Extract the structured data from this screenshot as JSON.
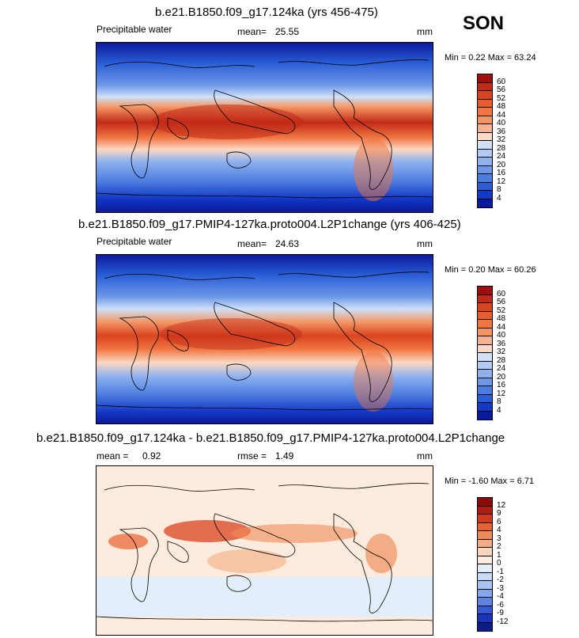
{
  "season": "SON",
  "units": "mm",
  "panels": [
    {
      "title": "b.e21.B1850.f09_g17.124ka (yrs 456-475)",
      "variable": "Precipitable water",
      "mean_label": "mean=",
      "mean": "25.55",
      "minmax": "Min =   0.22 Max =  63.24"
    },
    {
      "title": "b.e21.B1850.f09_g17.PMIP4-127ka.proto004.L2P1change (yrs 406-425)",
      "variable": "Precipitable water",
      "mean_label": "mean=",
      "mean": "24.63",
      "minmax": "Min =   0.20 Max =  60.26"
    },
    {
      "title": "b.e21.B1850.f09_g17.124ka - b.e21.B1850.f09_g17.PMIP4-127ka.proto004.L2P1change",
      "mean_label": "mean =",
      "mean": "0.92",
      "rmse_label": "rmse =",
      "rmse": "1.49",
      "minmax": "Min =  -1.60 Max =   6.71"
    }
  ],
  "colorbar_levels": [
    "60",
    "56",
    "52",
    "48",
    "44",
    "40",
    "36",
    "32",
    "28",
    "24",
    "20",
    "16",
    "12",
    "8",
    "4"
  ],
  "colorbar_diff_levels": [
    "12",
    "9",
    "6",
    "4",
    "3",
    "2",
    "1",
    "0",
    "-1",
    "-2",
    "-3",
    "-4",
    "-6",
    "-9",
    "-12"
  ],
  "colors": {
    "abs": [
      "#9e0f10",
      "#c12a17",
      "#d9441f",
      "#e85c2d",
      "#f07642",
      "#f39563",
      "#f6b290",
      "#fbd9c4",
      "#cfe0f8",
      "#b1cbf5",
      "#8fb2ef",
      "#6d98e8",
      "#4b7de0",
      "#2a5ed6",
      "#1339c6",
      "#0a1a9c"
    ],
    "diff": [
      "#8a0a0a",
      "#b01b14",
      "#d23a1e",
      "#e8622f",
      "#f08a56",
      "#f5ab83",
      "#fbd6bf",
      "#fdecdd",
      "#e3eefb",
      "#c7dbf6",
      "#a7c3f1",
      "#84a6ea",
      "#5e83e1",
      "#3559d4",
      "#1934b9",
      "#0c1b8c"
    ]
  }
}
